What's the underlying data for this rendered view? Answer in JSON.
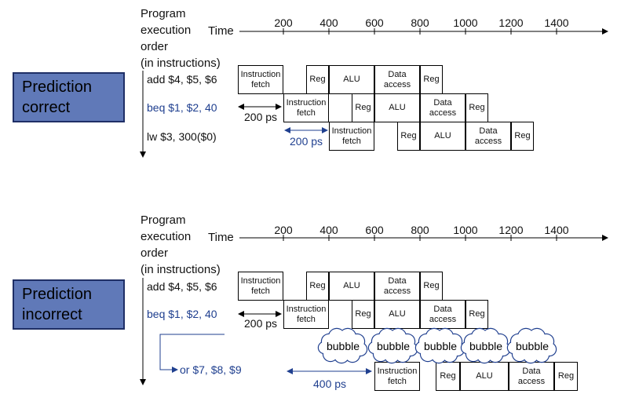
{
  "panels": [
    {
      "prediction_label": "Prediction correct",
      "heading": [
        "Program",
        "execution",
        "order",
        "(in instructions)"
      ],
      "time_label": "Time",
      "ticks": [
        "200",
        "400",
        "600",
        "800",
        "1000",
        "1200",
        "1400"
      ],
      "instructions": [
        "add $4, $5, $6",
        "beq $1, $2, 40",
        "lw  $3, 300($0)"
      ],
      "delays": [
        "200 ps",
        "200 ps"
      ]
    },
    {
      "prediction_label": "Prediction incorrect",
      "heading": [
        "Program",
        "execution",
        "order",
        "(in instructions)"
      ],
      "time_label": "Time",
      "ticks": [
        "200",
        "400",
        "600",
        "800",
        "1000",
        "1200",
        "1400"
      ],
      "instructions": [
        "add $4, $5, $6",
        "beq $1, $2, 40",
        "or $7, $8, $9"
      ],
      "delays": [
        "200 ps",
        "400 ps"
      ],
      "bubbles": [
        "bubble",
        "bubble",
        "bubble",
        "bubble",
        "bubble"
      ]
    }
  ],
  "stages": {
    "if": [
      "Instruction",
      "fetch"
    ],
    "reg": "Reg",
    "alu": "ALU",
    "data": [
      "Data",
      "access"
    ]
  },
  "colors": {
    "prediction_box": "#6079b8",
    "accent_blue": "#1f3f8f"
  }
}
